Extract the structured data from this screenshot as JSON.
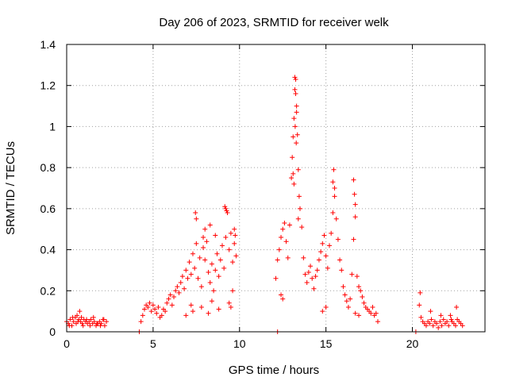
{
  "chart_data": {
    "type": "scatter",
    "title": "Day 206 of 2023, SRMTID for receiver welk",
    "xlabel": "GPS time / hours",
    "ylabel": "SRMTID / TECUs",
    "xlim": [
      0,
      24.2
    ],
    "ylim": [
      0,
      1.4
    ],
    "x_ticks": [
      0,
      5,
      10,
      15,
      20
    ],
    "y_ticks": [
      0,
      0.2,
      0.4,
      0.6,
      0.8,
      1.0,
      1.2,
      1.4
    ],
    "x_tick_labels": [
      "0",
      "5",
      "10",
      "15",
      "20"
    ],
    "y_tick_labels": [
      "0",
      "0.2",
      "0.4",
      "0.6",
      "0.8",
      "1",
      "1.2",
      "1.4"
    ],
    "grid": true,
    "marker": "+",
    "color": "#ff0000",
    "series": [
      {
        "name": "SRMTID",
        "x": [
          0.0,
          0.1,
          0.2,
          0.3,
          0.4,
          0.5,
          0.6,
          0.7,
          0.8,
          0.9,
          1.0,
          1.1,
          1.2,
          1.3,
          1.4,
          1.5,
          1.6,
          1.7,
          1.8,
          1.9,
          2.0,
          2.1,
          2.2,
          2.3,
          0.15,
          0.35,
          0.55,
          0.75,
          0.95,
          1.15,
          1.35,
          1.55,
          1.75,
          1.95,
          2.15,
          0.65,
          0.85,
          4.3,
          4.4,
          4.5,
          4.6,
          4.7,
          4.8,
          4.9,
          5.0,
          5.1,
          5.2,
          5.3,
          5.4,
          5.5,
          5.6,
          5.7,
          5.8,
          5.9,
          6.0,
          6.1,
          6.2,
          6.3,
          6.4,
          6.5,
          6.6,
          6.7,
          6.8,
          6.9,
          7.0,
          7.1,
          7.2,
          7.3,
          7.4,
          7.5,
          7.6,
          7.7,
          7.8,
          7.9,
          8.0,
          8.1,
          8.2,
          8.3,
          8.4,
          8.5,
          8.6,
          8.7,
          8.8,
          8.9,
          9.0,
          9.1,
          9.2,
          9.3,
          9.4,
          9.5,
          9.6,
          9.7,
          9.8,
          7.45,
          7.5,
          7.9,
          8.0,
          8.3,
          8.6,
          9.15,
          9.2,
          9.25,
          9.7,
          9.75,
          8.4,
          7.8,
          7.3,
          9.5,
          6.9,
          7.2,
          8.2,
          8.8,
          9.4,
          9.6,
          12.1,
          12.2,
          12.3,
          12.4,
          12.5,
          12.6,
          12.7,
          12.8,
          12.9,
          13.0,
          13.05,
          13.1,
          13.15,
          13.2,
          13.25,
          13.3,
          13.35,
          13.4,
          13.45,
          13.5,
          13.6,
          13.7,
          13.8,
          13.9,
          14.0,
          14.1,
          14.2,
          14.3,
          14.4,
          14.5,
          14.6,
          14.7,
          14.8,
          14.9,
          15.0,
          15.1,
          15.2,
          15.3,
          15.4,
          15.5,
          15.6,
          15.7,
          15.8,
          15.9,
          16.0,
          16.1,
          16.2,
          16.3,
          16.4,
          16.5,
          16.6,
          16.7,
          16.8,
          16.9,
          17.0,
          17.1,
          17.2,
          17.3,
          17.4,
          17.5,
          17.6,
          17.7,
          17.8,
          17.9,
          18.0,
          13.2,
          13.25,
          13.3,
          13.22,
          13.28,
          13.1,
          13.15,
          12.4,
          12.5,
          13.4,
          15.4,
          15.45,
          15.5,
          16.6,
          16.65,
          16.7,
          15.0,
          14.8,
          16.7,
          16.9,
          20.4,
          20.5,
          20.6,
          20.7,
          20.8,
          20.9,
          21.0,
          21.1,
          21.2,
          21.3,
          21.4,
          21.5,
          21.6,
          21.7,
          21.8,
          21.9,
          22.0,
          22.1,
          22.2,
          22.3,
          22.4,
          22.5,
          22.6,
          22.7,
          22.8,
          22.9,
          20.45,
          21.05,
          21.65,
          22.25,
          22.55,
          4.2,
          12.2,
          20.2
        ],
        "y": [
          0.05,
          0.04,
          0.06,
          0.03,
          0.05,
          0.07,
          0.08,
          0.06,
          0.05,
          0.04,
          0.06,
          0.05,
          0.04,
          0.05,
          0.06,
          0.04,
          0.05,
          0.03,
          0.04,
          0.05,
          0.04,
          0.06,
          0.03,
          0.05,
          0.03,
          0.07,
          0.04,
          0.1,
          0.03,
          0.06,
          0.03,
          0.07,
          0.04,
          0.03,
          0.06,
          0.05,
          0.07,
          0.05,
          0.08,
          0.11,
          0.13,
          0.12,
          0.14,
          0.1,
          0.13,
          0.11,
          0.09,
          0.12,
          0.07,
          0.08,
          0.11,
          0.1,
          0.14,
          0.16,
          0.18,
          0.13,
          0.17,
          0.2,
          0.22,
          0.19,
          0.24,
          0.27,
          0.21,
          0.3,
          0.26,
          0.34,
          0.28,
          0.38,
          0.31,
          0.43,
          0.26,
          0.36,
          0.22,
          0.41,
          0.35,
          0.44,
          0.29,
          0.24,
          0.33,
          0.2,
          0.3,
          0.38,
          0.27,
          0.35,
          0.42,
          0.31,
          0.46,
          0.58,
          0.4,
          0.48,
          0.34,
          0.43,
          0.37,
          0.58,
          0.55,
          0.46,
          0.5,
          0.52,
          0.47,
          0.61,
          0.6,
          0.59,
          0.5,
          0.47,
          0.15,
          0.12,
          0.1,
          0.12,
          0.08,
          0.13,
          0.09,
          0.11,
          0.14,
          0.2,
          0.26,
          0.35,
          0.4,
          0.46,
          0.5,
          0.53,
          0.44,
          0.36,
          0.52,
          0.75,
          0.85,
          0.95,
          1.04,
          1.18,
          1.23,
          1.07,
          0.96,
          0.79,
          0.66,
          0.6,
          0.51,
          0.36,
          0.28,
          0.24,
          0.29,
          0.32,
          0.26,
          0.21,
          0.27,
          0.3,
          0.35,
          0.39,
          0.43,
          0.47,
          0.37,
          0.31,
          0.42,
          0.48,
          0.58,
          0.66,
          0.55,
          0.45,
          0.35,
          0.3,
          0.22,
          0.18,
          0.15,
          0.12,
          0.16,
          0.28,
          0.45,
          0.56,
          0.27,
          0.22,
          0.2,
          0.17,
          0.14,
          0.12,
          0.11,
          0.1,
          0.09,
          0.12,
          0.08,
          0.09,
          0.05,
          1.24,
          1.16,
          1.1,
          1.0,
          0.92,
          0.77,
          0.72,
          0.18,
          0.16,
          0.55,
          0.73,
          0.79,
          0.7,
          0.74,
          0.67,
          0.62,
          0.12,
          0.1,
          0.09,
          0.08,
          0.13,
          0.07,
          0.05,
          0.04,
          0.03,
          0.05,
          0.04,
          0.06,
          0.03,
          0.05,
          0.04,
          0.02,
          0.05,
          0.03,
          0.06,
          0.04,
          0.05,
          0.03,
          0.08,
          0.05,
          0.04,
          0.03,
          0.06,
          0.05,
          0.04,
          0.03,
          0.19,
          0.1,
          0.08,
          0.06,
          0.12,
          0.0,
          0.0,
          0.0
        ]
      }
    ]
  }
}
